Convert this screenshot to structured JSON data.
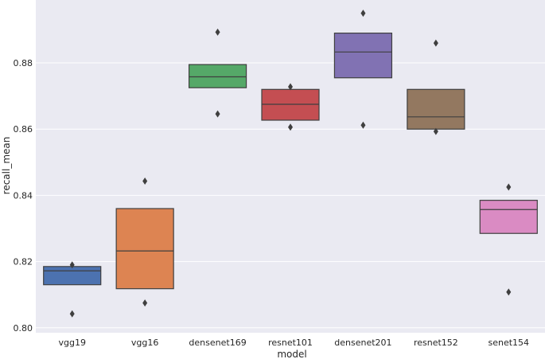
{
  "chart_data": {
    "type": "boxen",
    "title": "",
    "xlabel": "model",
    "ylabel": "recall_mean",
    "ylim": [
      0.7985,
      0.899
    ],
    "yticks": [
      0.8,
      0.82,
      0.84,
      0.86,
      0.88
    ],
    "ytick_labels": [
      "0.80",
      "0.82",
      "0.84",
      "0.86",
      "0.88"
    ],
    "grid": true,
    "background": "#eaeaf2",
    "categories": [
      "vgg19",
      "vgg16",
      "densenet169",
      "resnet101",
      "densenet201",
      "resnet152",
      "senet154"
    ],
    "series": [
      {
        "name": "vgg19",
        "box_low": 0.813,
        "box_high": 0.8185,
        "median": 0.8172,
        "outliers": [
          0.819,
          0.8042
        ],
        "color": "#4c72b0"
      },
      {
        "name": "vgg16",
        "box_low": 0.8118,
        "box_high": 0.836,
        "median": 0.8232,
        "outliers": [
          0.8443,
          0.8075
        ],
        "color": "#dd8452"
      },
      {
        "name": "densenet169",
        "box_low": 0.8725,
        "box_high": 0.8795,
        "median": 0.8758,
        "outliers": [
          0.8893,
          0.8646
        ],
        "color": "#55a868"
      },
      {
        "name": "resnet101",
        "box_low": 0.8627,
        "box_high": 0.872,
        "median": 0.8675,
        "outliers": [
          0.8728,
          0.8606
        ],
        "color": "#c44e52"
      },
      {
        "name": "densenet201",
        "box_low": 0.8755,
        "box_high": 0.889,
        "median": 0.8833,
        "outliers": [
          0.895,
          0.8612
        ],
        "color": "#8172b3"
      },
      {
        "name": "resnet152",
        "box_low": 0.86,
        "box_high": 0.872,
        "median": 0.8637,
        "outliers": [
          0.886,
          0.8593
        ],
        "color": "#937860"
      },
      {
        "name": "senet154",
        "box_low": 0.8285,
        "box_high": 0.8385,
        "median": 0.8357,
        "outliers": [
          0.8425,
          0.8108
        ],
        "color": "#da8bc3"
      }
    ]
  }
}
